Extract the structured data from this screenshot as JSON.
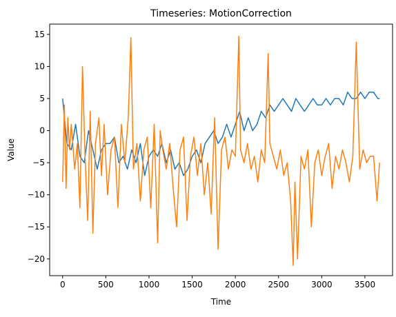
{
  "chart_data": {
    "type": "line",
    "title": "Timeseries: MotionCorrection",
    "xlabel": "Time",
    "ylabel": "Value",
    "xlim": [
      -150,
      3820
    ],
    "ylim": [
      -22.6,
      16.6
    ],
    "x_ticks": [
      0,
      500,
      1000,
      1500,
      2000,
      2500,
      3000,
      3500
    ],
    "y_ticks": [
      -20,
      -15,
      -10,
      -5,
      0,
      5,
      10,
      15
    ],
    "grid": false,
    "legend": "none",
    "series": [
      {
        "color": "#1f77b4",
        "x": [
          0,
          50,
          100,
          150,
          200,
          250,
          300,
          350,
          400,
          450,
          500,
          550,
          600,
          650,
          700,
          750,
          800,
          850,
          900,
          950,
          1000,
          1050,
          1100,
          1150,
          1200,
          1250,
          1300,
          1350,
          1400,
          1450,
          1500,
          1550,
          1600,
          1650,
          1700,
          1750,
          1800,
          1850,
          1900,
          1950,
          2000,
          2050,
          2100,
          2150,
          2200,
          2250,
          2300,
          2350,
          2400,
          2450,
          2500,
          2550,
          2600,
          2650,
          2700,
          2750,
          2800,
          2850,
          2900,
          2950,
          3000,
          3050,
          3100,
          3150,
          3200,
          3250,
          3300,
          3350,
          3400,
          3450,
          3500,
          3550,
          3600,
          3650,
          3670
        ],
        "values": [
          5,
          -2,
          -3,
          1,
          -4,
          -5,
          0,
          -3,
          -6,
          -3,
          -2,
          -2,
          -1,
          -5,
          -4,
          -6,
          -3,
          -5,
          -2,
          -7,
          -4,
          -3,
          -4,
          -2,
          -5,
          -3,
          -6,
          -5,
          -7,
          -6,
          -4,
          -3,
          -5,
          -2,
          -1,
          0,
          -2,
          -1,
          1,
          -1,
          1,
          3,
          0,
          2,
          0,
          1,
          3,
          2,
          4,
          3,
          4,
          5,
          4,
          3,
          5,
          4,
          3,
          4,
          5,
          4,
          4,
          5,
          4,
          5,
          5,
          4,
          6,
          5,
          5,
          6,
          5,
          6,
          6,
          5,
          5
        ]
      },
      {
        "color": "#ff7f0e",
        "x": [
          0,
          20,
          40,
          60,
          80,
          100,
          140,
          170,
          200,
          230,
          260,
          290,
          320,
          350,
          380,
          420,
          450,
          480,
          520,
          560,
          600,
          640,
          680,
          720,
          760,
          790,
          820,
          860,
          900,
          940,
          980,
          1020,
          1060,
          1100,
          1130,
          1160,
          1200,
          1240,
          1280,
          1320,
          1360,
          1400,
          1440,
          1480,
          1520,
          1560,
          1600,
          1640,
          1680,
          1720,
          1760,
          1800,
          1840,
          1880,
          1920,
          1960,
          2000,
          2040,
          2060,
          2100,
          2140,
          2180,
          2220,
          2260,
          2300,
          2340,
          2380,
          2400,
          2440,
          2480,
          2520,
          2560,
          2600,
          2640,
          2670,
          2690,
          2720,
          2760,
          2800,
          2840,
          2880,
          2920,
          2960,
          3000,
          3040,
          3080,
          3120,
          3160,
          3200,
          3240,
          3280,
          3320,
          3360,
          3400,
          3440,
          3480,
          3520,
          3560,
          3600,
          3640,
          3670
        ],
        "values": [
          -8,
          4,
          -9,
          2,
          -3,
          1,
          -6,
          -2,
          -12,
          10,
          -4,
          -14,
          3,
          -16,
          -2,
          2,
          -7,
          1,
          -10,
          -3,
          -1,
          -12,
          1,
          -5,
          2,
          14.5,
          -6,
          -2,
          -11,
          -3,
          -1,
          -12,
          1,
          -17.5,
          0,
          -3,
          -6,
          -2,
          -9,
          -15,
          -3,
          -1,
          -14,
          -4,
          -1,
          -7,
          -2,
          -10,
          -5,
          -13,
          2,
          -18.5,
          -3,
          -1,
          -6,
          -3,
          -4,
          14.7,
          -3,
          -5,
          -2,
          -6,
          -4,
          -8,
          -3,
          -5,
          12,
          -2,
          -4,
          -6,
          -3,
          -7,
          -5,
          -11,
          -21,
          -8,
          -20,
          -4,
          -6,
          -3,
          -15,
          -5,
          -3,
          -7,
          -4,
          -2,
          -9,
          -4,
          -6,
          -3,
          -5,
          -8,
          -4,
          13.8,
          -6,
          -3,
          -5,
          -4,
          -4,
          -11,
          -5
        ]
      }
    ]
  }
}
